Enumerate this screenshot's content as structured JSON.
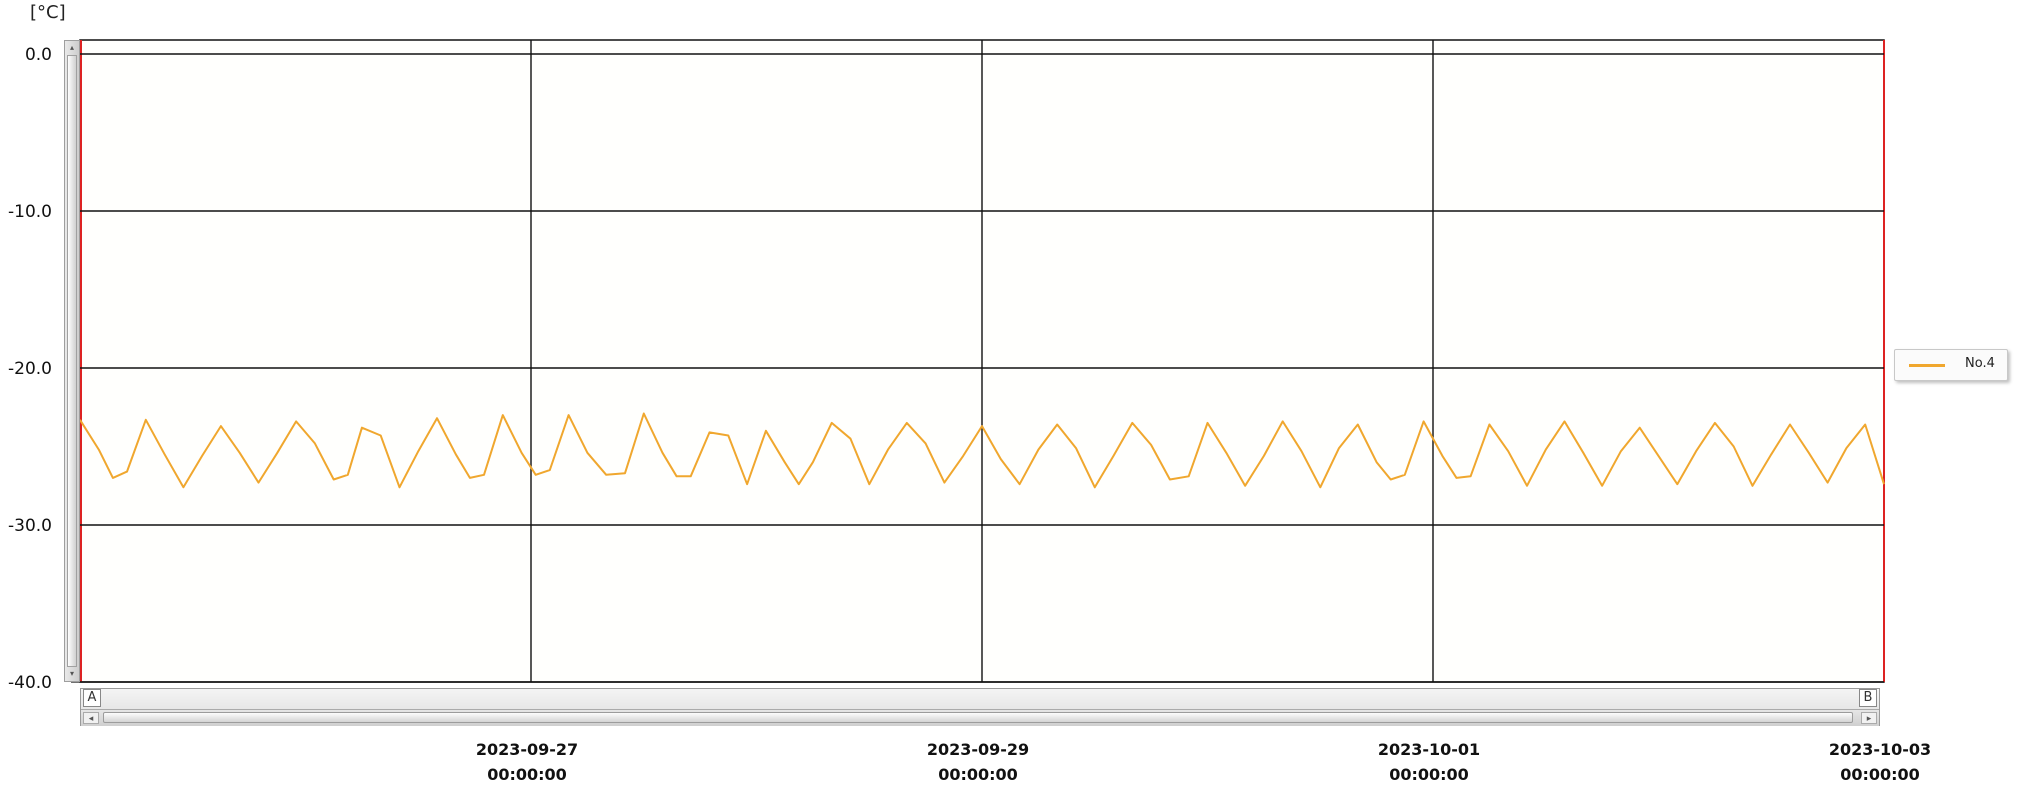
{
  "unit_label": "[°C]",
  "legend": {
    "label": "No.4",
    "color": "#f0a72e"
  },
  "markers": {
    "left": "A",
    "right": "B"
  },
  "scroll": {
    "left_arrow": "◂",
    "right_arrow": "▸",
    "up_arrow": "▴",
    "down_arrow": "▾"
  },
  "chart_data": {
    "type": "line",
    "title": "",
    "xlabel": "",
    "ylabel": "[°C]",
    "ylim": [
      -40.0,
      0.0
    ],
    "y_ticks": [
      0.0,
      -10.0,
      -20.0,
      -30.0,
      -40.0
    ],
    "y_tick_labels": [
      "0.0",
      "-10.0",
      "-20.0",
      "-30.0",
      "-40.0"
    ],
    "xlim": [
      "2023-09-25 00:00",
      "2023-10-03 00:00"
    ],
    "x_ticks": [
      "2023-09-27 00:00",
      "2023-09-29 00:00",
      "2023-10-01 00:00",
      "2023-10-03 00:00"
    ],
    "x_tick_labels": [
      [
        "2023-09-27",
        "00:00:00"
      ],
      [
        "2023-09-29",
        "00:00:00"
      ],
      [
        "2023-10-01",
        "00:00:00"
      ],
      [
        "2023-10-03",
        "00:00:00"
      ]
    ],
    "grid": true,
    "legend_position": "right",
    "series": [
      {
        "name": "No.4",
        "color": "#f0a72e",
        "points": [
          [
            "2023-09-25 00:00",
            -23.3
          ],
          [
            "2023-09-25 02:00",
            -25.2
          ],
          [
            "2023-09-25 03:30",
            -27.0
          ],
          [
            "2023-09-25 05:00",
            -26.6
          ],
          [
            "2023-09-25 07:00",
            -23.3
          ],
          [
            "2023-09-25 09:00",
            -25.5
          ],
          [
            "2023-09-25 11:00",
            -27.6
          ],
          [
            "2023-09-25 13:00",
            -25.6
          ],
          [
            "2023-09-25 15:00",
            -23.7
          ],
          [
            "2023-09-25 17:00",
            -25.4
          ],
          [
            "2023-09-25 19:00",
            -27.3
          ],
          [
            "2023-09-25 21:00",
            -25.4
          ],
          [
            "2023-09-25 23:00",
            -23.4
          ],
          [
            "2023-09-26 01:00",
            -24.8
          ],
          [
            "2023-09-26 03:00",
            -27.1
          ],
          [
            "2023-09-26 04:30",
            -26.8
          ],
          [
            "2023-09-26 06:00",
            -23.8
          ],
          [
            "2023-09-26 08:00",
            -24.3
          ],
          [
            "2023-09-26 10:00",
            -27.6
          ],
          [
            "2023-09-26 12:00",
            -25.3
          ],
          [
            "2023-09-26 14:00",
            -23.2
          ],
          [
            "2023-09-26 16:00",
            -25.5
          ],
          [
            "2023-09-26 17:30",
            -27.0
          ],
          [
            "2023-09-26 19:00",
            -26.8
          ],
          [
            "2023-09-26 21:00",
            -23.0
          ],
          [
            "2023-09-26 23:00",
            -25.4
          ],
          [
            "2023-09-27 00:30",
            -26.8
          ],
          [
            "2023-09-27 02:00",
            -26.5
          ],
          [
            "2023-09-27 04:00",
            -23.0
          ],
          [
            "2023-09-27 06:00",
            -25.4
          ],
          [
            "2023-09-27 08:00",
            -26.8
          ],
          [
            "2023-09-27 10:00",
            -26.7
          ],
          [
            "2023-09-27 12:00",
            -22.9
          ],
          [
            "2023-09-27 14:00",
            -25.4
          ],
          [
            "2023-09-27 15:30",
            -26.9
          ],
          [
            "2023-09-27 17:00",
            -26.9
          ],
          [
            "2023-09-27 19:00",
            -24.1
          ],
          [
            "2023-09-27 21:00",
            -24.3
          ],
          [
            "2023-09-27 23:00",
            -27.4
          ],
          [
            "2023-09-28 01:00",
            -24.0
          ],
          [
            "2023-09-28 03:00",
            -26.0
          ],
          [
            "2023-09-28 04:30",
            -27.4
          ],
          [
            "2023-09-28 06:00",
            -26.0
          ],
          [
            "2023-09-28 08:00",
            -23.5
          ],
          [
            "2023-09-28 10:00",
            -24.5
          ],
          [
            "2023-09-28 12:00",
            -27.4
          ],
          [
            "2023-09-28 14:00",
            -25.2
          ],
          [
            "2023-09-28 16:00",
            -23.5
          ],
          [
            "2023-09-28 18:00",
            -24.8
          ],
          [
            "2023-09-28 20:00",
            -27.3
          ],
          [
            "2023-09-28 22:00",
            -25.6
          ],
          [
            "2023-09-29 00:00",
            -23.7
          ],
          [
            "2023-09-29 02:00",
            -25.8
          ],
          [
            "2023-09-29 04:00",
            -27.4
          ],
          [
            "2023-09-29 06:00",
            -25.2
          ],
          [
            "2023-09-29 08:00",
            -23.6
          ],
          [
            "2023-09-29 10:00",
            -25.1
          ],
          [
            "2023-09-29 12:00",
            -27.6
          ],
          [
            "2023-09-29 14:00",
            -25.6
          ],
          [
            "2023-09-29 16:00",
            -23.5
          ],
          [
            "2023-09-29 18:00",
            -24.9
          ],
          [
            "2023-09-29 20:00",
            -27.1
          ],
          [
            "2023-09-29 22:00",
            -26.9
          ],
          [
            "2023-09-30 00:00",
            -23.5
          ],
          [
            "2023-09-30 02:00",
            -25.4
          ],
          [
            "2023-09-30 04:00",
            -27.5
          ],
          [
            "2023-09-30 06:00",
            -25.6
          ],
          [
            "2023-09-30 08:00",
            -23.4
          ],
          [
            "2023-09-30 10:00",
            -25.3
          ],
          [
            "2023-09-30 12:00",
            -27.6
          ],
          [
            "2023-09-30 14:00",
            -25.1
          ],
          [
            "2023-09-30 16:00",
            -23.6
          ],
          [
            "2023-09-30 18:00",
            -26.0
          ],
          [
            "2023-09-30 19:30",
            -27.1
          ],
          [
            "2023-09-30 21:00",
            -26.8
          ],
          [
            "2023-09-30 23:00",
            -23.4
          ],
          [
            "2023-10-01 01:00",
            -25.6
          ],
          [
            "2023-10-01 02:30",
            -27.0
          ],
          [
            "2023-10-01 04:00",
            -26.9
          ],
          [
            "2023-10-01 06:00",
            -23.6
          ],
          [
            "2023-10-01 08:00",
            -25.3
          ],
          [
            "2023-10-01 10:00",
            -27.5
          ],
          [
            "2023-10-01 12:00",
            -25.2
          ],
          [
            "2023-10-01 14:00",
            -23.4
          ],
          [
            "2023-10-01 16:00",
            -25.4
          ],
          [
            "2023-10-01 18:00",
            -27.5
          ],
          [
            "2023-10-01 20:00",
            -25.3
          ],
          [
            "2023-10-01 22:00",
            -23.8
          ],
          [
            "2023-10-02 00:00",
            -25.6
          ],
          [
            "2023-10-02 02:00",
            -27.4
          ],
          [
            "2023-10-02 04:00",
            -25.3
          ],
          [
            "2023-10-02 06:00",
            -23.5
          ],
          [
            "2023-10-02 08:00",
            -25.0
          ],
          [
            "2023-10-02 10:00",
            -27.5
          ],
          [
            "2023-10-02 12:00",
            -25.5
          ],
          [
            "2023-10-02 14:00",
            -23.6
          ],
          [
            "2023-10-02 16:00",
            -25.4
          ],
          [
            "2023-10-02 18:00",
            -27.3
          ],
          [
            "2023-10-02 20:00",
            -25.1
          ],
          [
            "2023-10-02 22:00",
            -23.6
          ],
          [
            "2023-10-03 00:00",
            -27.4
          ]
        ]
      }
    ]
  }
}
